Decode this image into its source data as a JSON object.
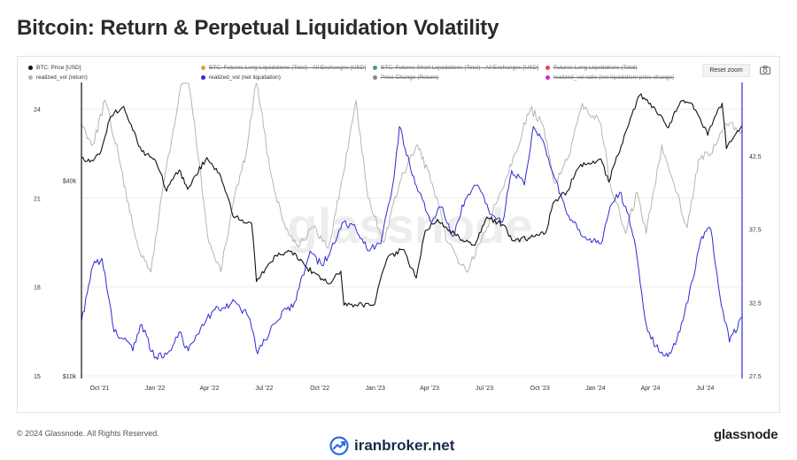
{
  "page": {
    "title": "Bitcoin: Return & Perpetual Liquidation Volatility",
    "copyright": "© 2024 Glassnode. All Rights Reserved.",
    "brand": "glassnode",
    "site": "iranbroker.net",
    "watermark": "glassnode"
  },
  "toolbar": {
    "reset_zoom_label": "Reset zoom",
    "camera_icon": "camera-icon"
  },
  "legend": [
    {
      "label": "BTC: Price [USD]",
      "color": "#111111",
      "enabled": true
    },
    {
      "label": "BTC: Futures Long Liquidations (Total) - All Exchanges [USD]",
      "color": "#e0a030",
      "enabled": false
    },
    {
      "label": "BTC: Futures Short Liquidations (Total) - All Exchanges [USD]",
      "color": "#3aa876",
      "enabled": false
    },
    {
      "label": "Futures Long Liquidations (Total)",
      "color": "#e04a4a",
      "enabled": false
    },
    {
      "label": "realized_vol (return)",
      "color": "#b5b5b5",
      "enabled": true
    },
    {
      "label": "realized_vol (net liquidation)",
      "color": "#2c2cd6",
      "enabled": true
    },
    {
      "label": "Price Change (Return)",
      "color": "#888888",
      "enabled": false
    },
    {
      "label": "realized_vol ratio (net liquidation/ price change)",
      "color": "#c030d0",
      "enabled": false
    }
  ],
  "chart_data": {
    "type": "line",
    "x_tick_labels": [
      "Oct '21",
      "Jan '22",
      "Apr '22",
      "Jul '22",
      "Oct '22",
      "Jan '23",
      "Apr '23",
      "Jul '23",
      "Oct '23",
      "Jan '24",
      "Apr '24",
      "Jul '24"
    ],
    "x_tick_dates": [
      "2021-10-01",
      "2022-01-01",
      "2022-04-01",
      "2022-07-01",
      "2022-10-01",
      "2023-01-01",
      "2023-04-01",
      "2023-07-01",
      "2023-10-01",
      "2024-01-01",
      "2024-04-01",
      "2024-07-01"
    ],
    "x_range": [
      "2021-09-01",
      "2024-08-31"
    ],
    "left_axis": {
      "ticks": [
        15,
        18,
        21,
        24
      ],
      "ylim": [
        15,
        24.9
      ]
    },
    "price_axis": {
      "ticks": [
        "$10k",
        "$40k"
      ],
      "scale": "log",
      "ylim": [
        10000,
        80000
      ]
    },
    "right_axis": {
      "ticks": [
        27.5,
        32.5,
        37.5,
        42.5
      ],
      "ylim": [
        27.5,
        47.5
      ]
    },
    "grid": true,
    "series": [
      {
        "name": "BTC: Price [USD]",
        "axis": "price",
        "color": "#111111",
        "points": [
          [
            "2021-09-01",
            47000
          ],
          [
            "2021-09-15",
            45500
          ],
          [
            "2021-10-01",
            48000
          ],
          [
            "2021-10-20",
            63000
          ],
          [
            "2021-11-10",
            67500
          ],
          [
            "2021-11-25",
            57000
          ],
          [
            "2021-12-10",
            49000
          ],
          [
            "2021-12-31",
            46500
          ],
          [
            "2022-01-20",
            37000
          ],
          [
            "2022-02-10",
            43000
          ],
          [
            "2022-02-24",
            37500
          ],
          [
            "2022-03-28",
            47000
          ],
          [
            "2022-04-20",
            41000
          ],
          [
            "2022-05-10",
            31000
          ],
          [
            "2022-06-10",
            29500
          ],
          [
            "2022-06-18",
            19500
          ],
          [
            "2022-07-20",
            23500
          ],
          [
            "2022-08-15",
            24200
          ],
          [
            "2022-09-10",
            21500
          ],
          [
            "2022-10-15",
            19200
          ],
          [
            "2022-11-05",
            21000
          ],
          [
            "2022-11-10",
            16500
          ],
          [
            "2022-12-31",
            16600
          ],
          [
            "2023-01-20",
            22800
          ],
          [
            "2023-02-15",
            24500
          ],
          [
            "2023-03-10",
            20000
          ],
          [
            "2023-03-25",
            28000
          ],
          [
            "2023-04-14",
            30300
          ],
          [
            "2023-05-15",
            27000
          ],
          [
            "2023-06-15",
            25200
          ],
          [
            "2023-07-05",
            30800
          ],
          [
            "2023-07-31",
            29200
          ],
          [
            "2023-08-18",
            26000
          ],
          [
            "2023-09-15",
            26600
          ],
          [
            "2023-10-10",
            27500
          ],
          [
            "2023-10-25",
            34500
          ],
          [
            "2023-11-15",
            37000
          ],
          [
            "2023-12-05",
            44000
          ],
          [
            "2024-01-10",
            46500
          ],
          [
            "2024-01-23",
            39500
          ],
          [
            "2024-02-15",
            52000
          ],
          [
            "2024-03-14",
            73000
          ],
          [
            "2024-04-01",
            69000
          ],
          [
            "2024-05-01",
            58000
          ],
          [
            "2024-05-21",
            70000
          ],
          [
            "2024-06-10",
            68500
          ],
          [
            "2024-07-05",
            55000
          ],
          [
            "2024-07-29",
            69000
          ],
          [
            "2024-08-05",
            50000
          ],
          [
            "2024-08-31",
            59000
          ]
        ]
      },
      {
        "name": "realized_vol (return)",
        "axis": "left",
        "color": "#b5b5b5",
        "points": [
          [
            "2021-09-01",
            23.5
          ],
          [
            "2021-09-20",
            22.8
          ],
          [
            "2021-10-10",
            24.3
          ],
          [
            "2021-11-01",
            22.5
          ],
          [
            "2021-11-20",
            20.5
          ],
          [
            "2021-12-10",
            19.0
          ],
          [
            "2021-12-25",
            18.5
          ],
          [
            "2022-01-15",
            21.5
          ],
          [
            "2022-02-05",
            23.8
          ],
          [
            "2022-02-20",
            25.8
          ],
          [
            "2022-03-10",
            23.0
          ],
          [
            "2022-03-31",
            19.5
          ],
          [
            "2022-04-20",
            18.5
          ],
          [
            "2022-05-12",
            21.0
          ],
          [
            "2022-06-01",
            22.5
          ],
          [
            "2022-06-18",
            25.0
          ],
          [
            "2022-07-10",
            22.0
          ],
          [
            "2022-08-01",
            20.2
          ],
          [
            "2022-08-25",
            19.4
          ],
          [
            "2022-09-20",
            20.0
          ],
          [
            "2022-10-15",
            19.3
          ],
          [
            "2022-11-09",
            21.8
          ],
          [
            "2022-11-30",
            24.3
          ],
          [
            "2022-12-20",
            21.0
          ],
          [
            "2023-01-15",
            19.5
          ],
          [
            "2023-02-10",
            21.5
          ],
          [
            "2023-03-12",
            22.8
          ],
          [
            "2023-04-05",
            21.5
          ],
          [
            "2023-05-01",
            19.5
          ],
          [
            "2023-06-01",
            18.5
          ],
          [
            "2023-06-25",
            19.5
          ],
          [
            "2023-07-20",
            20.8
          ],
          [
            "2023-08-20",
            22.5
          ],
          [
            "2023-09-15",
            24.0
          ],
          [
            "2023-10-05",
            23.5
          ],
          [
            "2023-10-25",
            21.5
          ],
          [
            "2023-11-20",
            22.5
          ],
          [
            "2023-12-10",
            24.2
          ],
          [
            "2024-01-10",
            23.5
          ],
          [
            "2024-01-25",
            21.5
          ],
          [
            "2024-02-20",
            19.8
          ],
          [
            "2024-03-10",
            21.2
          ],
          [
            "2024-03-25",
            19.8
          ],
          [
            "2024-04-20",
            22.8
          ],
          [
            "2024-05-10",
            21.5
          ],
          [
            "2024-06-01",
            20.0
          ],
          [
            "2024-06-20",
            22.3
          ],
          [
            "2024-07-10",
            22.5
          ],
          [
            "2024-08-05",
            23.5
          ],
          [
            "2024-08-31",
            23.3
          ]
        ]
      },
      {
        "name": "realized_vol (net liquidation)",
        "axis": "right",
        "color": "#2c2cd6",
        "points": [
          [
            "2021-09-01",
            31.2
          ],
          [
            "2021-09-20",
            35.0
          ],
          [
            "2021-10-05",
            35.5
          ],
          [
            "2021-10-25",
            30.5
          ],
          [
            "2021-11-10",
            30.0
          ],
          [
            "2021-11-25",
            29.2
          ],
          [
            "2021-12-10",
            31.0
          ],
          [
            "2021-12-31",
            28.7
          ],
          [
            "2022-01-25",
            29.2
          ],
          [
            "2022-02-10",
            30.5
          ],
          [
            "2022-02-25",
            29.2
          ],
          [
            "2022-03-20",
            31.0
          ],
          [
            "2022-04-10",
            32.0
          ],
          [
            "2022-05-15",
            32.5
          ],
          [
            "2022-06-05",
            31.5
          ],
          [
            "2022-06-20",
            29.0
          ],
          [
            "2022-07-15",
            31.0
          ],
          [
            "2022-08-20",
            32.5
          ],
          [
            "2022-09-15",
            36.0
          ],
          [
            "2022-10-05",
            35.0
          ],
          [
            "2022-10-25",
            36.5
          ],
          [
            "2022-11-10",
            38.0
          ],
          [
            "2022-11-30",
            37.5
          ],
          [
            "2022-12-20",
            36.0
          ],
          [
            "2023-01-10",
            36.5
          ],
          [
            "2023-02-01",
            41.0
          ],
          [
            "2023-02-10",
            44.5
          ],
          [
            "2023-03-01",
            41.5
          ],
          [
            "2023-03-15",
            40.0
          ],
          [
            "2023-04-05",
            38.0
          ],
          [
            "2023-04-20",
            39.0
          ],
          [
            "2023-05-10",
            37.0
          ],
          [
            "2023-05-30",
            39.5
          ],
          [
            "2023-06-20",
            40.5
          ],
          [
            "2023-07-10",
            38.5
          ],
          [
            "2023-07-31",
            38.0
          ],
          [
            "2023-08-15",
            41.5
          ],
          [
            "2023-09-05",
            40.5
          ],
          [
            "2023-09-20",
            44.5
          ],
          [
            "2023-10-10",
            43.0
          ],
          [
            "2023-10-25",
            41.0
          ],
          [
            "2023-11-15",
            38.5
          ],
          [
            "2023-12-10",
            37.0
          ],
          [
            "2024-01-10",
            36.5
          ],
          [
            "2024-01-25",
            39.0
          ],
          [
            "2024-02-10",
            40.0
          ],
          [
            "2024-02-25",
            38.5
          ],
          [
            "2024-03-10",
            35.5
          ],
          [
            "2024-03-25",
            31.0
          ],
          [
            "2024-04-10",
            29.5
          ],
          [
            "2024-04-30",
            28.8
          ],
          [
            "2024-05-20",
            30.5
          ],
          [
            "2024-06-10",
            34.0
          ],
          [
            "2024-06-25",
            37.0
          ],
          [
            "2024-07-10",
            37.5
          ],
          [
            "2024-07-25",
            33.0
          ],
          [
            "2024-08-10",
            29.8
          ],
          [
            "2024-08-31",
            31.5
          ]
        ]
      }
    ]
  }
}
